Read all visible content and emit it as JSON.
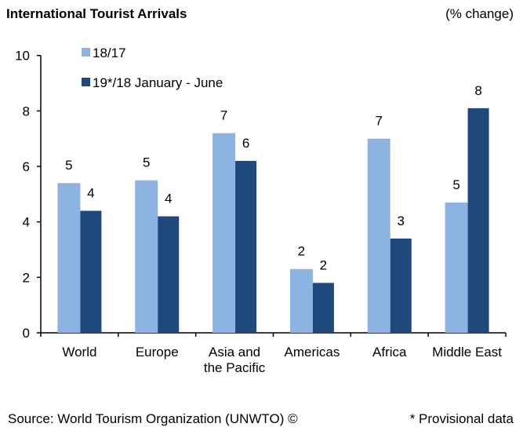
{
  "chart_data": {
    "type": "bar",
    "title": "International Tourist Arrivals",
    "unit_label": "(% change)",
    "categories": [
      "World",
      "Europe",
      "Asia and the Pacific",
      "Americas",
      "Africa",
      "Middle East"
    ],
    "category_lines": [
      [
        "World"
      ],
      [
        "Europe"
      ],
      [
        "Asia and",
        "the Pacific"
      ],
      [
        "Americas"
      ],
      [
        "Africa"
      ],
      [
        "Middle East"
      ]
    ],
    "series": [
      {
        "name": "18/17",
        "color": "#8DB3E2",
        "values": [
          5.4,
          5.5,
          7.2,
          2.3,
          7.0,
          4.7
        ],
        "labels": [
          "5",
          "5",
          "7",
          "2",
          "7",
          "5"
        ]
      },
      {
        "name": "19*/18 January - June",
        "color": "#1F497D",
        "values": [
          4.4,
          4.2,
          6.2,
          1.8,
          3.4,
          8.1
        ],
        "labels": [
          "4",
          "4",
          "6",
          "2",
          "3",
          "8"
        ]
      }
    ],
    "ylim": [
      0,
      10
    ],
    "yticks": [
      0,
      2,
      4,
      6,
      8,
      10
    ],
    "grid": false,
    "legend": "top-left",
    "source": "Source: World Tourism Organization (UNWTO) ©",
    "footnote": "* Provisional data"
  }
}
